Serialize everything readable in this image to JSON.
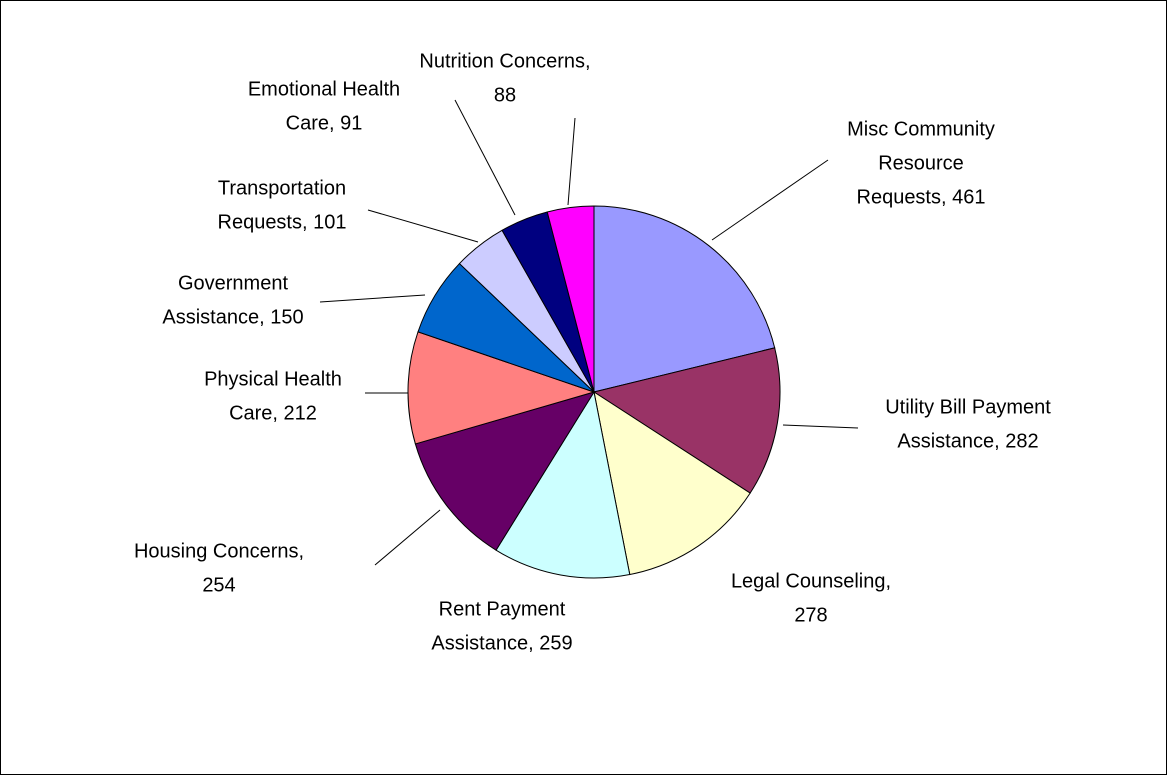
{
  "chart_data": {
    "type": "pie",
    "values": [
      461,
      282,
      278,
      259,
      254,
      212,
      150,
      101,
      91,
      88
    ],
    "value_labels": [
      [
        "Misc Community",
        "Resource",
        "Requests, 461"
      ],
      [
        "Utility Bill Payment",
        "Assistance, 282"
      ],
      [
        "Legal Counseling,",
        "278"
      ],
      [
        "Rent Payment",
        "Assistance, 259"
      ],
      [
        "Housing Concerns,",
        "254"
      ],
      [
        "Physical Health",
        "Care, 212"
      ],
      [
        "Government",
        "Assistance, 150"
      ],
      [
        "Transportation",
        "Requests, 101"
      ],
      [
        "Emotional Health",
        "Care, 91"
      ],
      [
        "Nutrition Concerns,",
        "88"
      ]
    ],
    "colors": [
      "#9999ff",
      "#993366",
      "#ffffcc",
      "#ccffff",
      "#660066",
      "#ff8080",
      "#0066cc",
      "#ccccff",
      "#000080",
      "#ff00ff"
    ]
  }
}
